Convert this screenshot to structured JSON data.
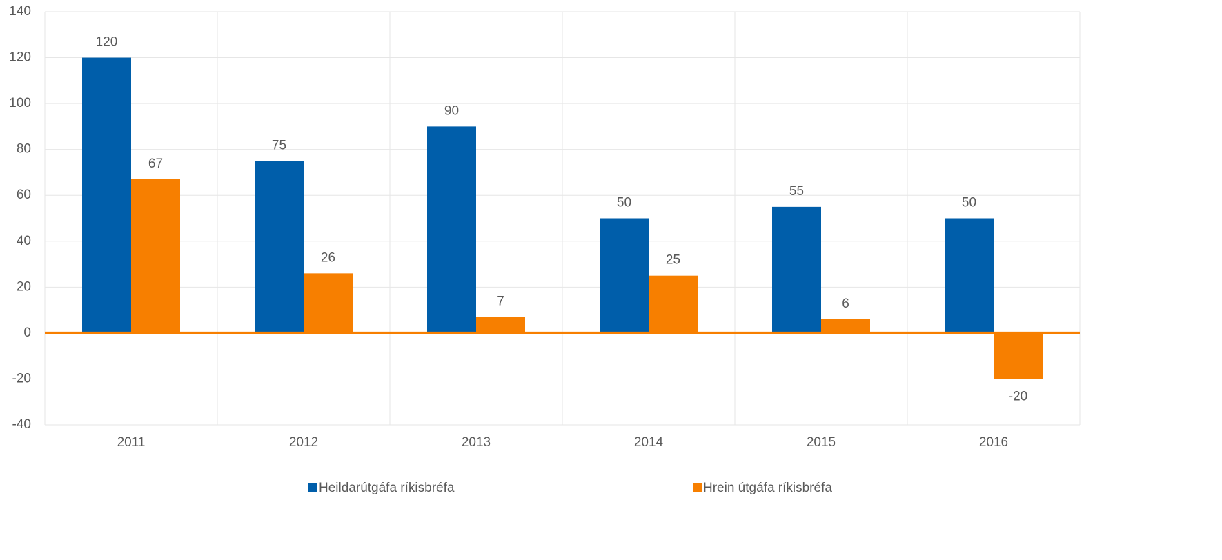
{
  "chart_data": {
    "type": "bar",
    "categories": [
      "2011",
      "2012",
      "2013",
      "2014",
      "2015",
      "2016"
    ],
    "series": [
      {
        "name": "Heildarútgáfa ríkisbréfa",
        "color": "#005eaa",
        "values": [
          120,
          75,
          90,
          50,
          55,
          50
        ]
      },
      {
        "name": "Hrein útgáfa ríkisbréfa",
        "color": "#f77f00",
        "values": [
          67,
          26,
          7,
          25,
          6,
          -20
        ]
      }
    ],
    "ylim": [
      -40,
      140
    ],
    "yticks": [
      -40,
      -20,
      0,
      20,
      40,
      60,
      80,
      100,
      120,
      140
    ],
    "grid": true,
    "legend": "bottom"
  }
}
